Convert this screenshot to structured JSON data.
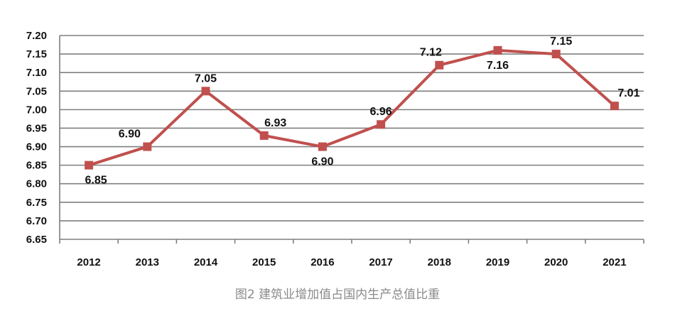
{
  "caption": "图2 建筑业增加值占国内生产总值比重",
  "chart_data": {
    "type": "line",
    "categories": [
      "2012",
      "2013",
      "2014",
      "2015",
      "2016",
      "2017",
      "2018",
      "2019",
      "2020",
      "2021"
    ],
    "series": [
      {
        "values": [
          6.85,
          6.9,
          7.05,
          6.93,
          6.9,
          6.96,
          7.12,
          7.16,
          7.15,
          7.01
        ],
        "data_labels": [
          "6.85",
          "6.90",
          "7.05",
          "6.93",
          "6.90",
          "6.96",
          "7.12",
          "7.16",
          "7.15",
          "7.01"
        ],
        "color": "#c0504d",
        "marker": "square"
      }
    ],
    "ylim": [
      6.65,
      7.2
    ],
    "yticks": [
      "7.20",
      "7.15",
      "7.10",
      "7.05",
      "7.00",
      "6.95",
      "6.90",
      "6.85",
      "6.80",
      "6.75",
      "6.70",
      "6.65"
    ],
    "grid": true,
    "legend": "none",
    "title": "",
    "xlabel": "",
    "ylabel": ""
  }
}
